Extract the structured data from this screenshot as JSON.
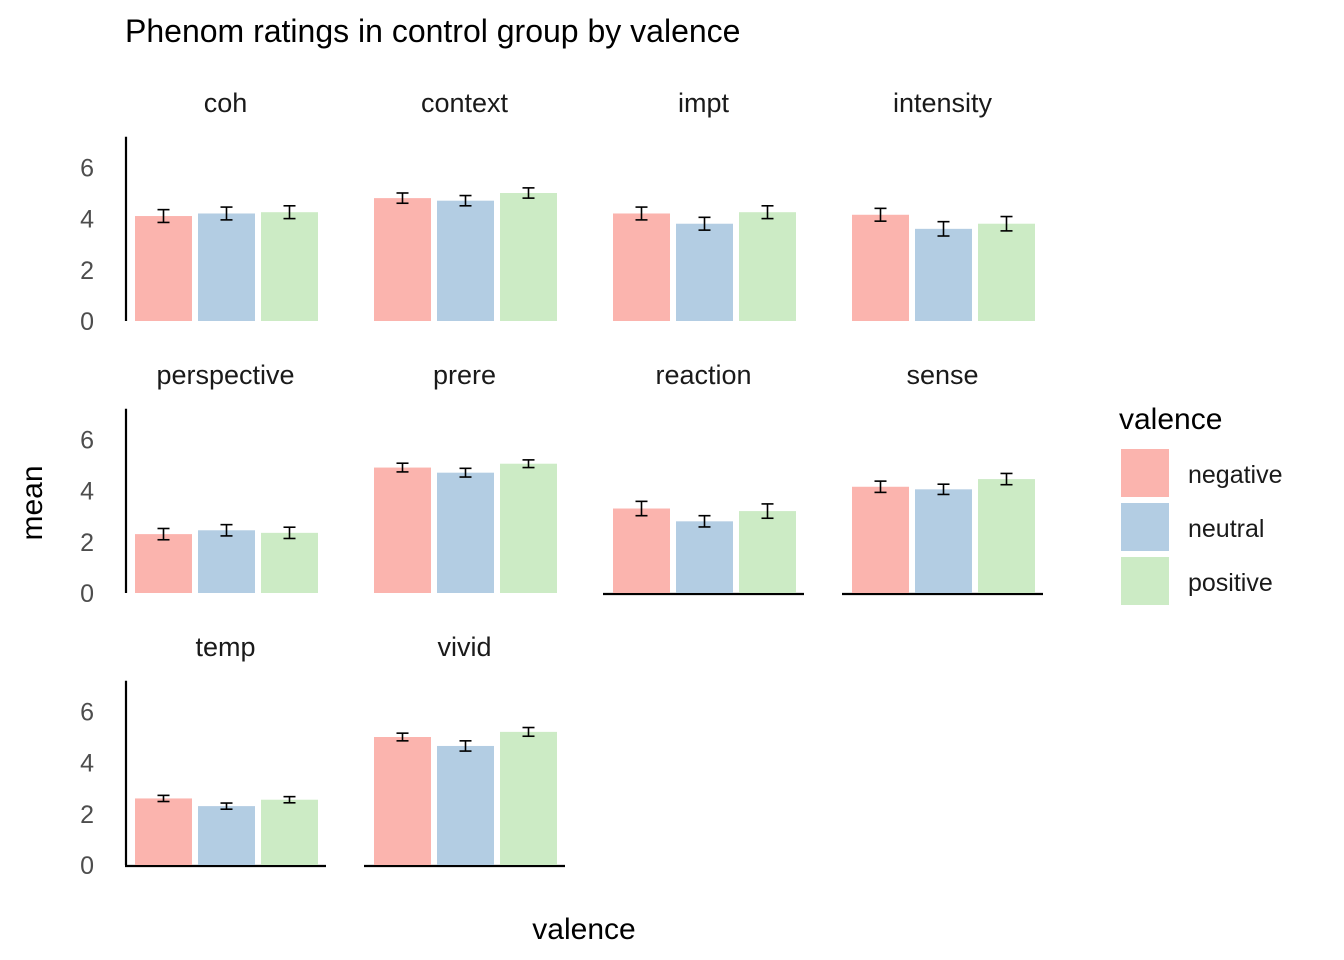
{
  "chart_data": {
    "type": "bar",
    "title": "Phenom ratings in control group by valence",
    "xlabel": "valence",
    "ylabel": "mean",
    "ylim": [
      0,
      7
    ],
    "yticks": [
      "0",
      "2",
      "4",
      "6"
    ],
    "grid": false,
    "legend": {
      "title": "valence",
      "placement": "right",
      "entries": [
        "negative",
        "neutral",
        "positive"
      ]
    },
    "colors": {
      "negative": "#FBB4AE",
      "neutral": "#B3CDE3",
      "positive": "#CCEBC5"
    },
    "categories": [
      "negative",
      "neutral",
      "positive"
    ],
    "facets": [
      {
        "name": "coh",
        "values": [
          4.1,
          4.2,
          4.25
        ],
        "errors": [
          0.25,
          0.25,
          0.25
        ]
      },
      {
        "name": "context",
        "values": [
          4.8,
          4.7,
          5.0
        ],
        "errors": [
          0.2,
          0.2,
          0.2
        ]
      },
      {
        "name": "impt",
        "values": [
          4.2,
          3.8,
          4.25
        ],
        "errors": [
          0.25,
          0.25,
          0.25
        ]
      },
      {
        "name": "intensity",
        "values": [
          4.15,
          3.6,
          3.8
        ],
        "errors": [
          0.25,
          0.28,
          0.28
        ]
      },
      {
        "name": "perspective",
        "values": [
          2.3,
          2.45,
          2.35
        ],
        "errors": [
          0.22,
          0.22,
          0.22
        ]
      },
      {
        "name": "prere",
        "values": [
          4.9,
          4.7,
          5.05
        ],
        "errors": [
          0.17,
          0.17,
          0.15
        ]
      },
      {
        "name": "reaction",
        "values": [
          3.3,
          2.8,
          3.2
        ],
        "errors": [
          0.28,
          0.22,
          0.28
        ]
      },
      {
        "name": "sense",
        "values": [
          4.15,
          4.05,
          4.45
        ],
        "errors": [
          0.22,
          0.2,
          0.22
        ]
      },
      {
        "name": "temp",
        "values": [
          2.6,
          2.3,
          2.55
        ],
        "errors": [
          0.12,
          0.12,
          0.12
        ]
      },
      {
        "name": "vivid",
        "values": [
          5.0,
          4.65,
          5.2
        ],
        "errors": [
          0.15,
          0.2,
          0.17
        ]
      }
    ]
  }
}
